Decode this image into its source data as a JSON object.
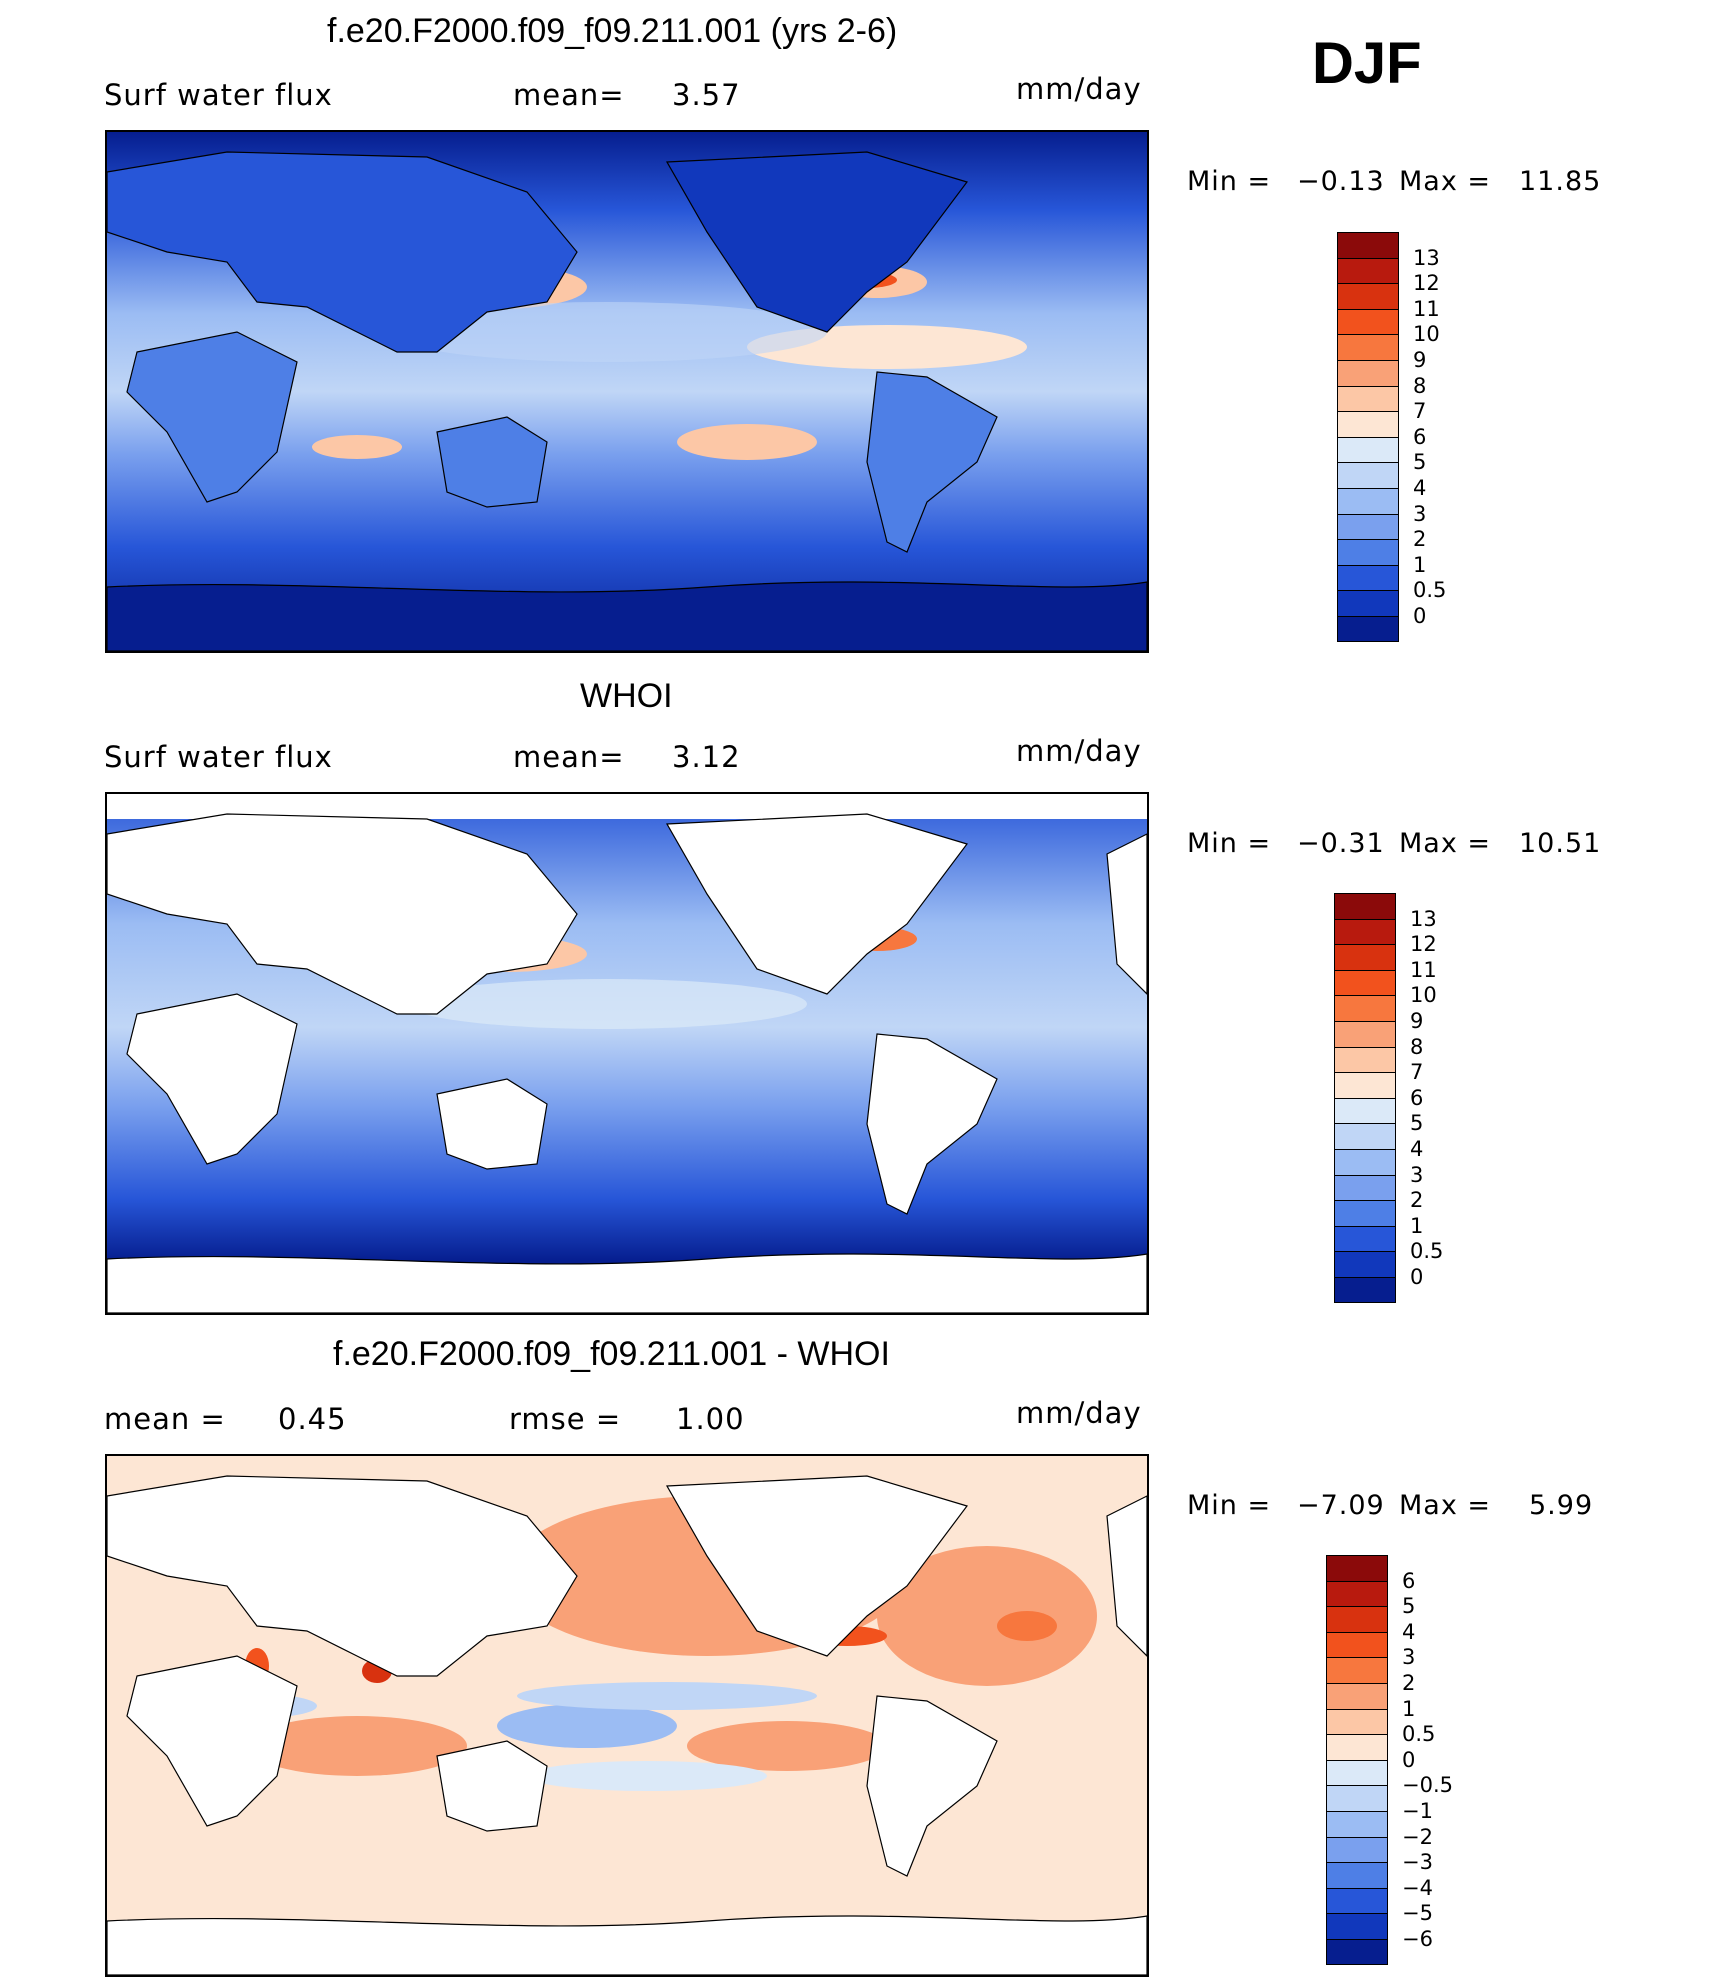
{
  "season": "DJF",
  "panels": [
    {
      "title": "f.e20.F2000.f09_f09.211.001 (yrs 2-6)",
      "left_label": "Surf water flux",
      "mid_label": "mean=",
      "mid_value": "3.57",
      "units": "mm/day",
      "min_label": "Min =",
      "min_value": "−0.13",
      "max_label": "Max =",
      "max_value": "11.85",
      "colorbar_labels": [
        "13",
        "12",
        "11",
        "10",
        "9",
        "8",
        "7",
        "6",
        "5",
        "4",
        "3",
        "2",
        "1",
        "0.5",
        "0"
      ],
      "colorbar_colors": [
        "#8b0a0a",
        "#b81a0e",
        "#d8320f",
        "#f2521d",
        "#f7773e",
        "#f9a177",
        "#fcc7a6",
        "#fde6d4",
        "#dbe9f8",
        "#c0d6f6",
        "#9bbcf3",
        "#7aa0ee",
        "#4e7fe6",
        "#2756d8",
        "#1138bc",
        "#061e8f"
      ],
      "scale": "nonneg"
    },
    {
      "title": "WHOI",
      "left_label": "Surf water flux",
      "mid_label": "mean=",
      "mid_value": "3.12",
      "units": "mm/day",
      "min_label": "Min =",
      "min_value": "−0.31",
      "max_label": "Max =",
      "max_value": "10.51",
      "colorbar_labels": [
        "13",
        "12",
        "11",
        "10",
        "9",
        "8",
        "7",
        "6",
        "5",
        "4",
        "3",
        "2",
        "1",
        "0.5",
        "0"
      ],
      "colorbar_colors": [
        "#8b0a0a",
        "#b81a0e",
        "#d8320f",
        "#f2521d",
        "#f7773e",
        "#f9a177",
        "#fcc7a6",
        "#fde6d4",
        "#dbe9f8",
        "#c0d6f6",
        "#9bbcf3",
        "#7aa0ee",
        "#4e7fe6",
        "#2756d8",
        "#1138bc",
        "#061e8f"
      ],
      "scale": "nonneg"
    },
    {
      "title": "f.e20.F2000.f09_f09.211.001 - WHOI",
      "left_label": "mean =",
      "left_value": "0.45",
      "mid_label": "rmse =",
      "mid_value": "1.00",
      "units": "mm/day",
      "min_label": "Min =",
      "min_value": "−7.09",
      "max_label": "Max =",
      "max_value": "5.99",
      "colorbar_labels": [
        "6",
        "5",
        "4",
        "3",
        "2",
        "1",
        "0.5",
        "0",
        "−0.5",
        "−1",
        "−2",
        "−3",
        "−4",
        "−5",
        "−6"
      ],
      "colorbar_colors": [
        "#8b0a0a",
        "#b81a0e",
        "#d8320f",
        "#f2521d",
        "#f7773e",
        "#f9a177",
        "#fcc7a6",
        "#fde6d4",
        "#dbe9f8",
        "#c0d6f6",
        "#9bbcf3",
        "#7aa0ee",
        "#4e7fe6",
        "#2756d8",
        "#1138bc",
        "#061e8f"
      ],
      "scale": "diff"
    }
  ]
}
